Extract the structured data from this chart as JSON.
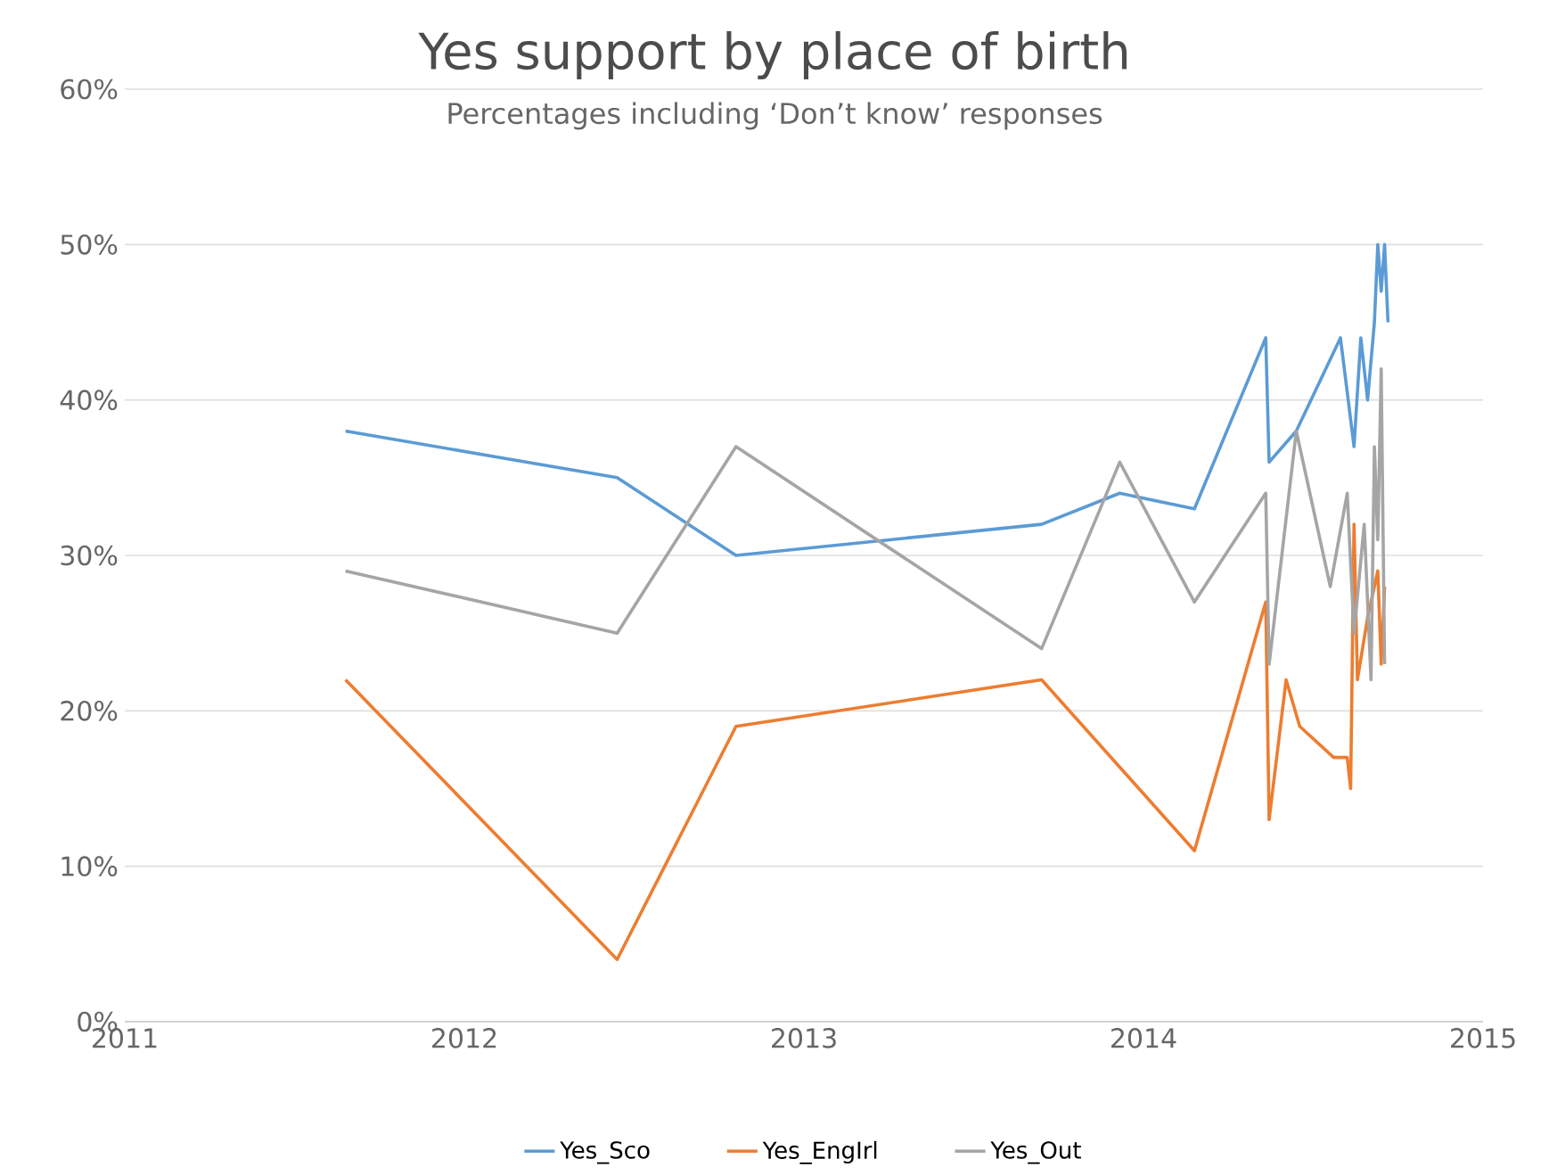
{
  "chart_data": {
    "type": "line",
    "title": "Yes support by place of birth",
    "subtitle": "Percentages including ‘Don’t know’ responses",
    "xlim": [
      2011,
      2015
    ],
    "xticks": [
      2011,
      2012,
      2013,
      2014,
      2015
    ],
    "ylim": [
      0,
      60
    ],
    "yticks": [
      {
        "value": 0,
        "label": "0%"
      },
      {
        "value": 10,
        "label": "10%"
      },
      {
        "value": 20,
        "label": "20%"
      },
      {
        "value": 30,
        "label": "30%"
      },
      {
        "value": 40,
        "label": "40%"
      },
      {
        "value": 50,
        "label": "50%"
      },
      {
        "value": 60,
        "label": "60%"
      }
    ],
    "grid": "y",
    "legend": "bottom",
    "marker": "none",
    "line_style": "solid",
    "series": [
      {
        "name": "Yes_Sco",
        "color": "#5b9bd5",
        "x": [
          2011.65,
          2012.45,
          2012.8,
          2013.7,
          2013.93,
          2014.15,
          2014.36,
          2014.37,
          2014.45,
          2014.58,
          2014.62,
          2014.64,
          2014.66,
          2014.68,
          2014.69,
          2014.7,
          2014.71,
          2014.72
        ],
        "values": [
          38,
          35,
          30,
          32,
          34,
          33,
          44,
          36,
          38,
          44,
          37,
          44,
          40,
          45,
          50,
          47,
          50,
          45
        ]
      },
      {
        "name": "Yes_EngIrl",
        "color": "#ed7d31",
        "x": [
          2011.65,
          2012.45,
          2012.8,
          2013.7,
          2014.15,
          2014.36,
          2014.37,
          2014.42,
          2014.46,
          2014.56,
          2014.6,
          2014.61,
          2014.62,
          2014.63,
          2014.66,
          2014.69,
          2014.7,
          2014.71
        ],
        "values": [
          22,
          4,
          19,
          22,
          11,
          27,
          13,
          22,
          19,
          17,
          17,
          15,
          32,
          22,
          26,
          29,
          23,
          28
        ]
      },
      {
        "name": "Yes_Out",
        "color": "#a5a5a5",
        "x": [
          2011.65,
          2012.45,
          2012.8,
          2013.7,
          2013.93,
          2014.15,
          2014.36,
          2014.37,
          2014.45,
          2014.55,
          2014.6,
          2014.62,
          2014.65,
          2014.67,
          2014.68,
          2014.69,
          2014.7,
          2014.71
        ],
        "values": [
          29,
          25,
          37,
          24,
          36,
          27,
          34,
          23,
          38,
          28,
          34,
          25,
          32,
          22,
          37,
          31,
          42,
          23
        ]
      }
    ]
  }
}
